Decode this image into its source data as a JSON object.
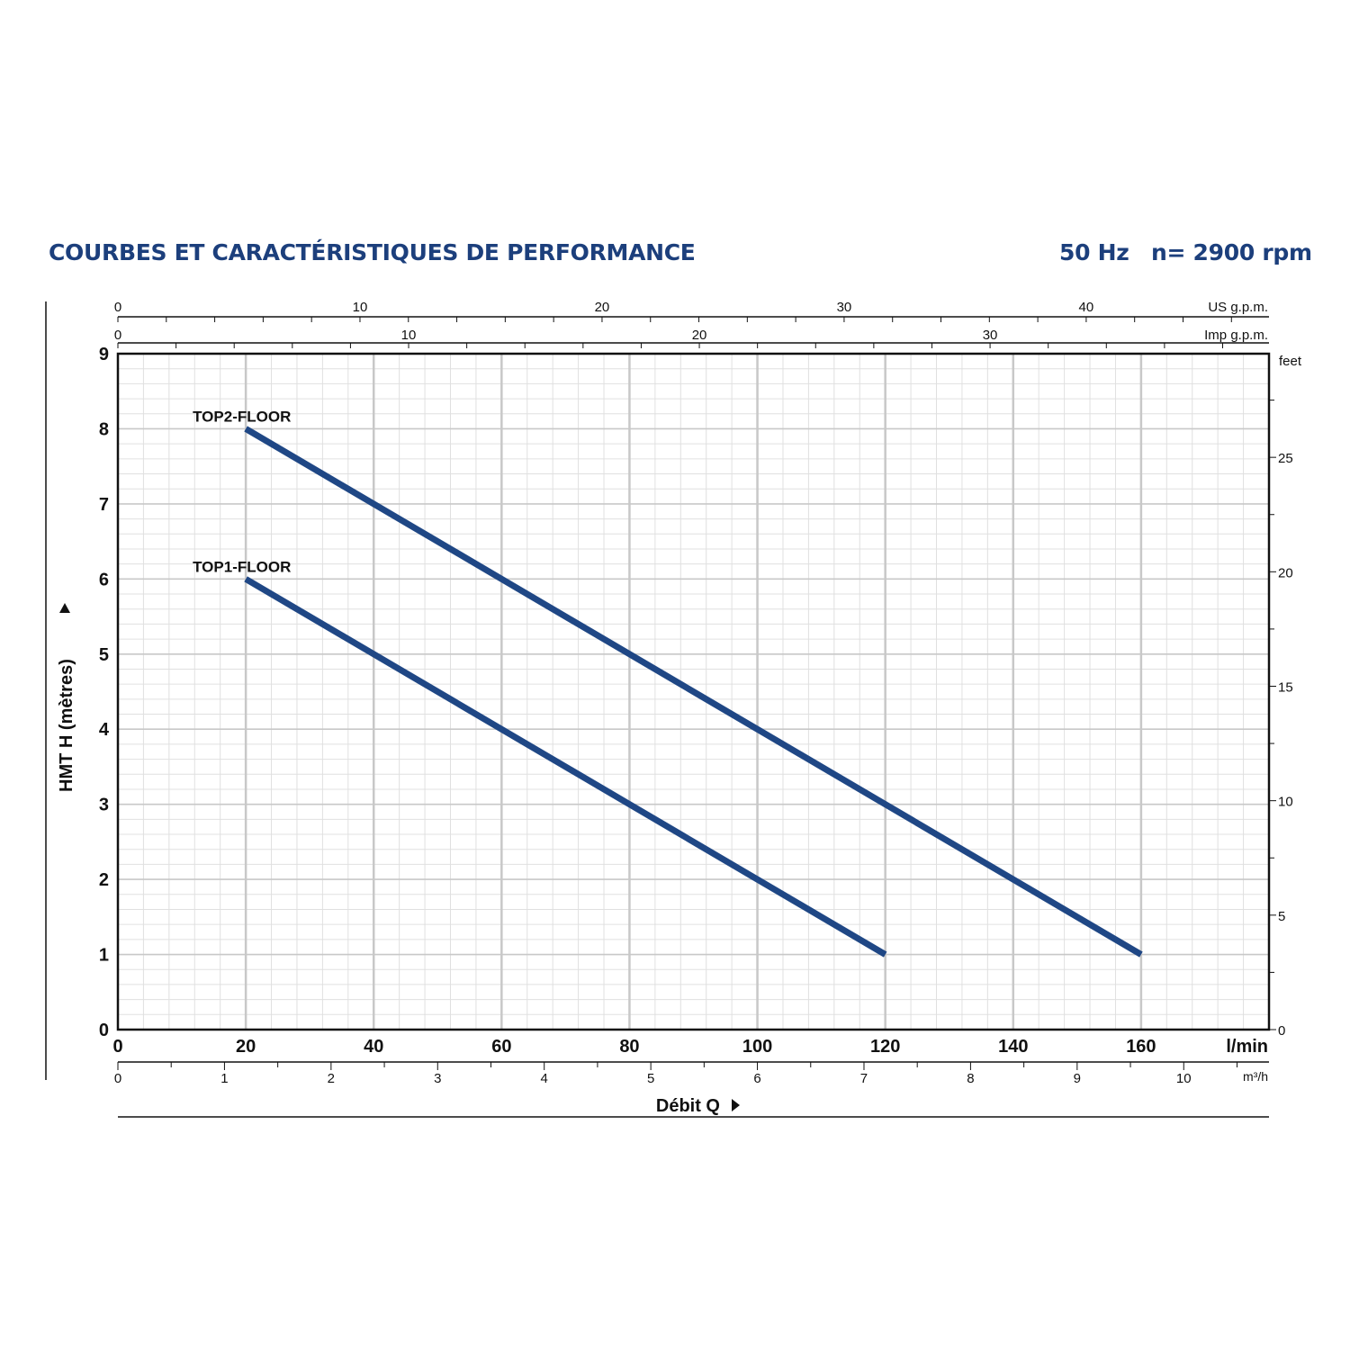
{
  "header": {
    "title": "COURBES ET CARACTÉRISTIQUES DE PERFORMANCE",
    "frequency": "50 Hz",
    "speed": "n= 2900 rpm"
  },
  "colors": {
    "title": "#1c3f7c",
    "curve": "#1f4785",
    "grid": "#c8c8c8"
  },
  "chart_data": {
    "type": "line",
    "title": "",
    "xlabel": "Débit Q",
    "ylabel": "HMT H (mètres)",
    "x_unit": "l/min",
    "xlim": [
      0,
      180
    ],
    "ylim": [
      0,
      9
    ],
    "x_ticks": [
      0,
      20,
      40,
      60,
      80,
      100,
      120,
      140,
      160
    ],
    "y_ticks": [
      0,
      1,
      2,
      3,
      4,
      5,
      6,
      7,
      8,
      9
    ],
    "grid": true,
    "series": [
      {
        "name": "TOP2-FLOOR",
        "x": [
          20,
          160
        ],
        "y": [
          8,
          1
        ]
      },
      {
        "name": "TOP1-FLOOR",
        "x": [
          20,
          120
        ],
        "y": [
          6,
          1
        ]
      }
    ],
    "secondary_axes": {
      "us_gpm": {
        "label": "US g.p.m.",
        "ticks": [
          0,
          10,
          20,
          30,
          40
        ]
      },
      "imp_gpm": {
        "label": "Imp g.p.m.",
        "ticks": [
          0,
          10,
          20,
          30
        ]
      },
      "m3h": {
        "label": "m³/h",
        "ticks": [
          0,
          1,
          2,
          3,
          4,
          5,
          6,
          7,
          8,
          9,
          10
        ]
      },
      "feet": {
        "label": "feet",
        "ticks": [
          0,
          5,
          10,
          15,
          20,
          25
        ]
      }
    }
  }
}
